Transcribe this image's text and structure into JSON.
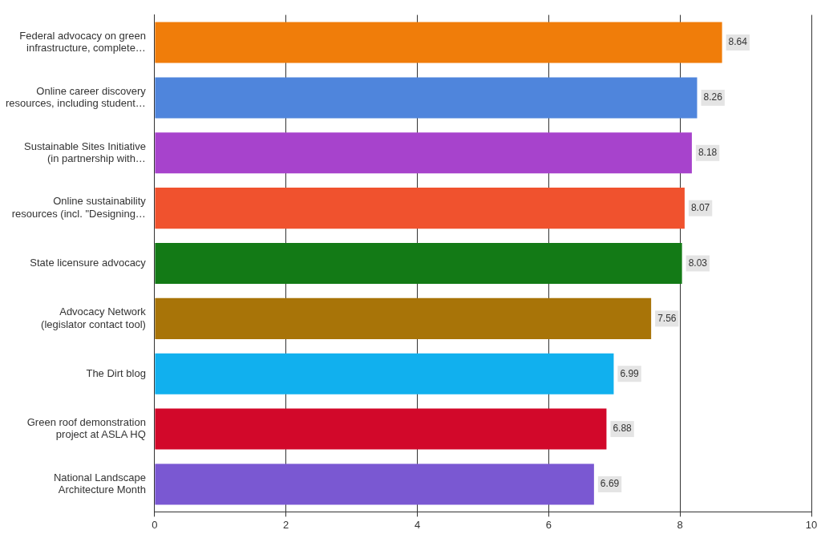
{
  "chart_data": {
    "type": "bar",
    "orientation": "horizontal",
    "categories": [
      "Federal advocacy on green\ninfrastructure, complete…",
      "Online career discovery\nresources, including student…",
      "Sustainable Sites Initiative\n(in partnership with…",
      "Online sustainability\nresources (incl. \"Designing…",
      "State licensure advocacy",
      "Advocacy Network\n(legislator contact tool)",
      "The Dirt blog",
      "Green roof demonstration\nproject at ASLA HQ",
      "National Landscape\nArchitecture Month"
    ],
    "values": [
      8.64,
      8.26,
      8.18,
      8.07,
      8.03,
      7.56,
      6.99,
      6.88,
      6.69
    ],
    "colors": [
      "#f07d0a",
      "#4f85dc",
      "#a743cc",
      "#f0522e",
      "#137a16",
      "#a87408",
      "#11b0ee",
      "#d2082a",
      "#7a58d2"
    ],
    "xlim": [
      0,
      10
    ],
    "xticks": [
      0,
      2,
      4,
      6,
      8,
      10
    ],
    "grid": "x",
    "data_labels": true
  }
}
